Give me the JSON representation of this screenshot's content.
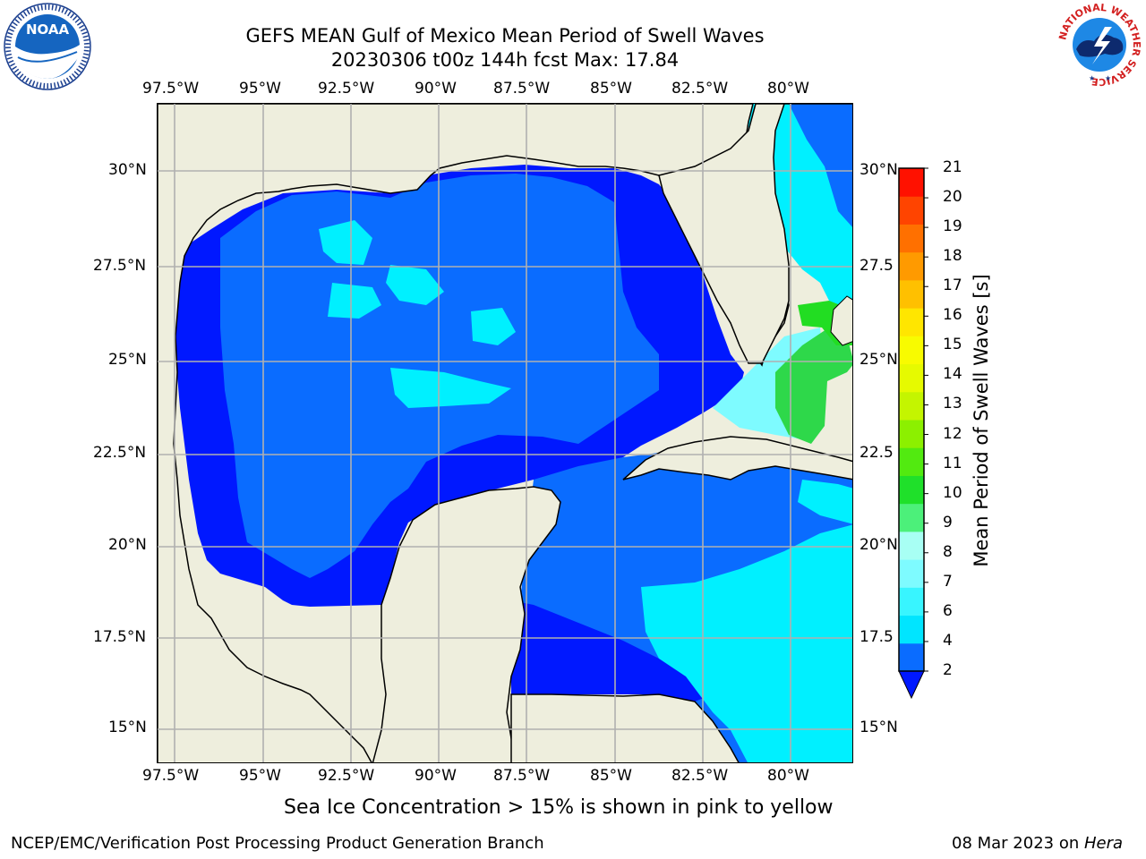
{
  "header": {
    "title": "GEFS MEAN Gulf of Mexico Mean Period of Swell Waves",
    "subtitle": "20230306 t00z 144h fcst   Max: 17.84"
  },
  "axes": {
    "lon_labels": [
      "97.5°W",
      "95°W",
      "92.5°W",
      "90°W",
      "87.5°W",
      "85°W",
      "82.5°W",
      "80°W"
    ],
    "lat_labels_left": [
      "30°N",
      "27.5°N",
      "25°N",
      "22.5°N",
      "20°N",
      "17.5°N",
      "15°N"
    ],
    "lat_labels_right": [
      "30°N",
      "27.5",
      "25°N",
      "22.5",
      "20°N",
      "17.5",
      "15°N"
    ]
  },
  "colorbar": {
    "label": "Mean Period of Swell Waves [s]",
    "ticks": [
      "21",
      "20",
      "19",
      "18",
      "17",
      "16",
      "15",
      "14",
      "13",
      "12",
      "11",
      "10",
      "9",
      "8",
      "7",
      "6",
      "4",
      "2"
    ],
    "colors_bottom_to_top": [
      "#0a6cff",
      "#00e5ff",
      "#38f5ff",
      "#7efbff",
      "#a8fff4",
      "#4cf07a",
      "#1fe02a",
      "#52ea10",
      "#8cf000",
      "#c4f500",
      "#e6fa00",
      "#f8fb00",
      "#ffe600",
      "#ffc000",
      "#ff9a00",
      "#ff7000",
      "#ff4400",
      "#ff1100"
    ],
    "extend_color": "#0018ff"
  },
  "legend_note": "Sea Ice Concentration > 15% is shown in pink to yellow",
  "footer": {
    "left": "NCEP/EMC/Verification Post Processing Product Generation Branch",
    "date": "08 Mar 2023 on ",
    "host": "Hera"
  },
  "logos": {
    "noaa_text": "NOAA",
    "nws_ring_text": "NATIONAL WEATHER SERVICE"
  },
  "colors": {
    "land": "#eeeedd",
    "deep_blue": "#0018ff",
    "mid_blue": "#0a6cff",
    "cyan": "#00f0ff",
    "light_cyan": "#7efbff",
    "green": "#22dd22",
    "gridline": "#b0b0b0"
  }
}
